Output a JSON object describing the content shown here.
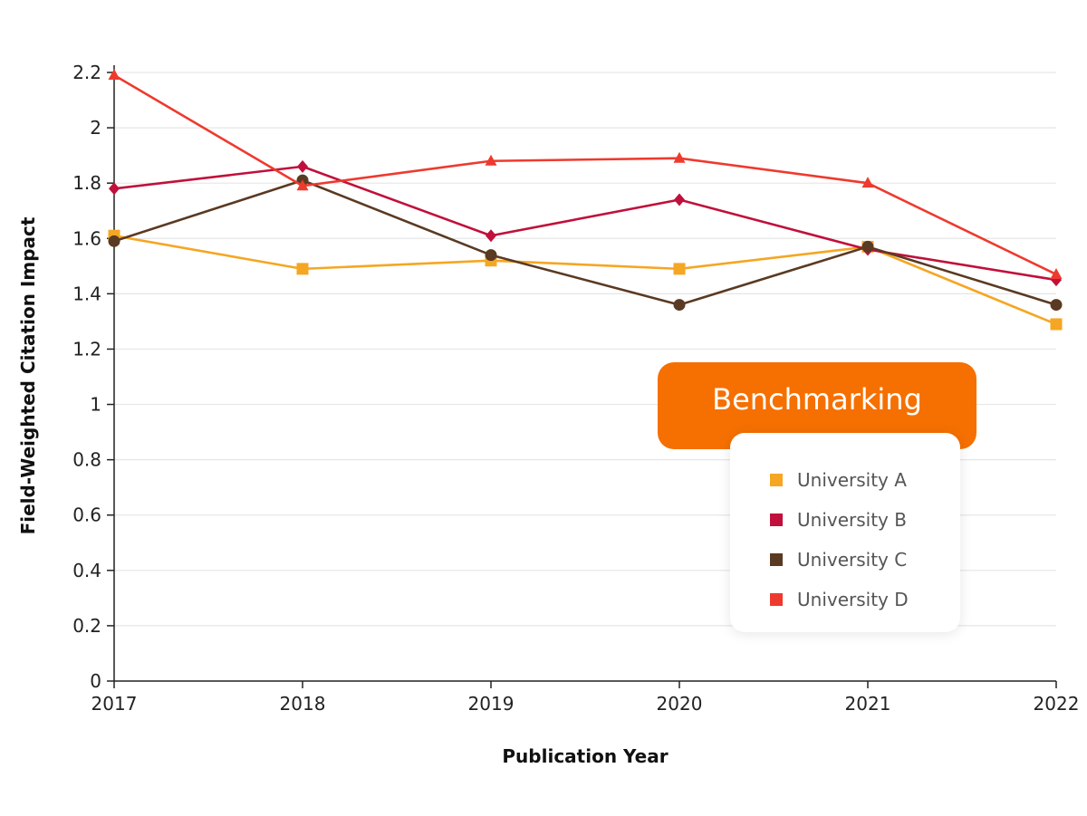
{
  "chart_data": {
    "type": "line",
    "title": "",
    "xlabel": "Publication Year",
    "ylabel": "Field-Weighted Citation Impact",
    "x": [
      "2017",
      "2018",
      "2019",
      "2020",
      "2021",
      "2022"
    ],
    "ylim": [
      0,
      2.2
    ],
    "yticks": [
      "0",
      "0.2",
      "0.4",
      "0.6",
      "0.8",
      "1",
      "1.2",
      "1.4",
      "1.6",
      "1.8",
      "2",
      "2.2"
    ],
    "grid": "horizontal",
    "legend": {
      "title": "Benchmarking",
      "placement": "bottom-right"
    },
    "series": [
      {
        "name": "University A",
        "color": "#f5a623",
        "marker": "square",
        "values": [
          1.61,
          1.49,
          1.52,
          1.49,
          1.57,
          1.29
        ]
      },
      {
        "name": "University B",
        "color": "#c0103b",
        "marker": "diamond",
        "values": [
          1.78,
          1.86,
          1.61,
          1.74,
          1.56,
          1.45
        ]
      },
      {
        "name": "University C",
        "color": "#5a3a22",
        "marker": "circle",
        "values": [
          1.59,
          1.81,
          1.54,
          1.36,
          1.57,
          1.36
        ]
      },
      {
        "name": "University D",
        "color": "#ee3a2e",
        "marker": "triangle",
        "values": [
          2.19,
          1.79,
          1.88,
          1.89,
          1.8,
          1.47
        ]
      }
    ]
  }
}
